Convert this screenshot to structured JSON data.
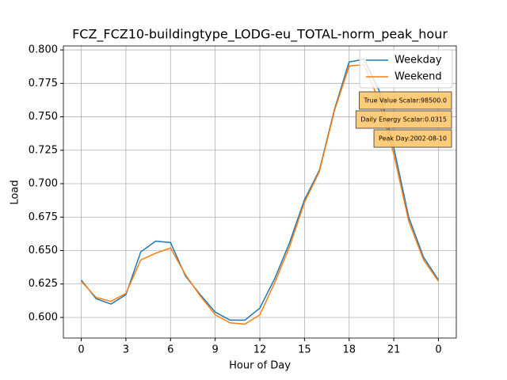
{
  "chart_data": {
    "type": "line",
    "title": "FCZ_FCZ10-buildingtype_LODG-eu_TOTAL-norm_peak_hour",
    "xlabel": "Hour of Day",
    "ylabel": "Load",
    "x": [
      0,
      1,
      2,
      3,
      4,
      5,
      6,
      7,
      8,
      9,
      10,
      11,
      12,
      13,
      14,
      15,
      16,
      17,
      18,
      19,
      20,
      21,
      22,
      23,
      24
    ],
    "series": [
      {
        "name": "Weekday",
        "color": "#1f77b4",
        "values": [
          0.628,
          0.614,
          0.61,
          0.617,
          0.649,
          0.657,
          0.656,
          0.631,
          0.617,
          0.604,
          0.598,
          0.598,
          0.607,
          0.629,
          0.656,
          0.688,
          0.71,
          0.755,
          0.791,
          0.793,
          0.77,
          0.727,
          0.675,
          0.645,
          0.628
        ]
      },
      {
        "name": "Weekend",
        "color": "#ff7f0e",
        "values": [
          0.627,
          0.615,
          0.612,
          0.618,
          0.643,
          0.648,
          0.652,
          0.632,
          0.616,
          0.602,
          0.596,
          0.595,
          0.602,
          0.626,
          0.653,
          0.686,
          0.709,
          0.754,
          0.788,
          0.789,
          0.762,
          0.722,
          0.672,
          0.643,
          0.627
        ]
      }
    ],
    "xlim": [
      -1.2,
      25.2
    ],
    "xticks": [
      0,
      3,
      6,
      9,
      12,
      15,
      18,
      21,
      {
        "value": 24,
        "label": "0"
      }
    ],
    "ylim": [
      0.5846,
      0.803
    ],
    "yticks": [
      {
        "value": 0.6,
        "label": "0.600"
      },
      {
        "value": 0.625,
        "label": "0.625"
      },
      {
        "value": 0.65,
        "label": "0.650"
      },
      {
        "value": 0.675,
        "label": "0.675"
      },
      {
        "value": 0.7,
        "label": "0.700"
      },
      {
        "value": 0.725,
        "label": "0.725"
      },
      {
        "value": 0.75,
        "label": "0.750"
      },
      {
        "value": 0.775,
        "label": "0.775"
      },
      {
        "value": 0.8,
        "label": "0.800"
      }
    ],
    "grid": true,
    "legend": "upper right",
    "annotations": [
      "True Value Scalar:98500.0",
      "Daily Energy Scalar:0.0315",
      "Peak Day:2002-08-10"
    ]
  }
}
